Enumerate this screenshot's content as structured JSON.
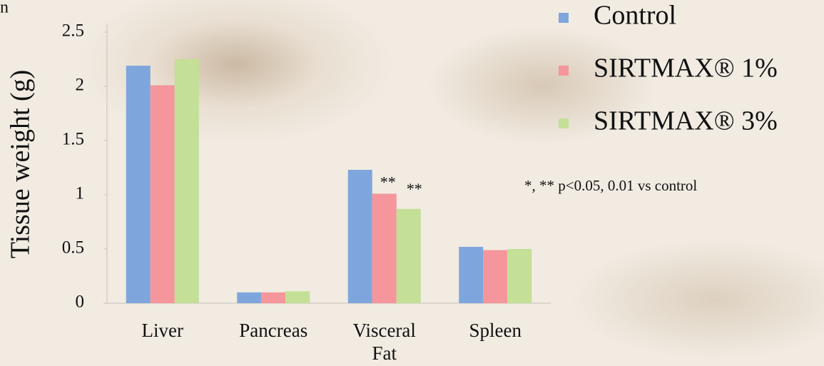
{
  "chart_data": {
    "type": "bar",
    "corner_text": "n",
    "y_label": "Tissue weight (g)",
    "note": "*, ** p<0.05, 0.01 vs control",
    "categories": [
      "Liver",
      "Pancreas",
      "Visceral Fat",
      "Spleen"
    ],
    "series": [
      {
        "name": "Control",
        "color": "#7fa6dc",
        "values": [
          2.19,
          0.1,
          1.23,
          0.52
        ]
      },
      {
        "name": "SIRTMAX® 1%",
        "color": "#f4969b",
        "values": [
          2.01,
          0.1,
          1.01,
          0.49
        ]
      },
      {
        "name": "SIRTMAX® 3%",
        "color": "#c4df96",
        "values": [
          2.25,
          0.11,
          0.87,
          0.5
        ]
      }
    ],
    "annotations": [
      {
        "text": "**",
        "series": 1,
        "category": 2
      },
      {
        "text": "**",
        "series": 2,
        "category": 2
      }
    ],
    "ylim": [
      0,
      2.5
    ],
    "yticks": [
      0,
      0.5,
      1,
      1.5,
      2,
      2.5
    ],
    "grid": false
  }
}
